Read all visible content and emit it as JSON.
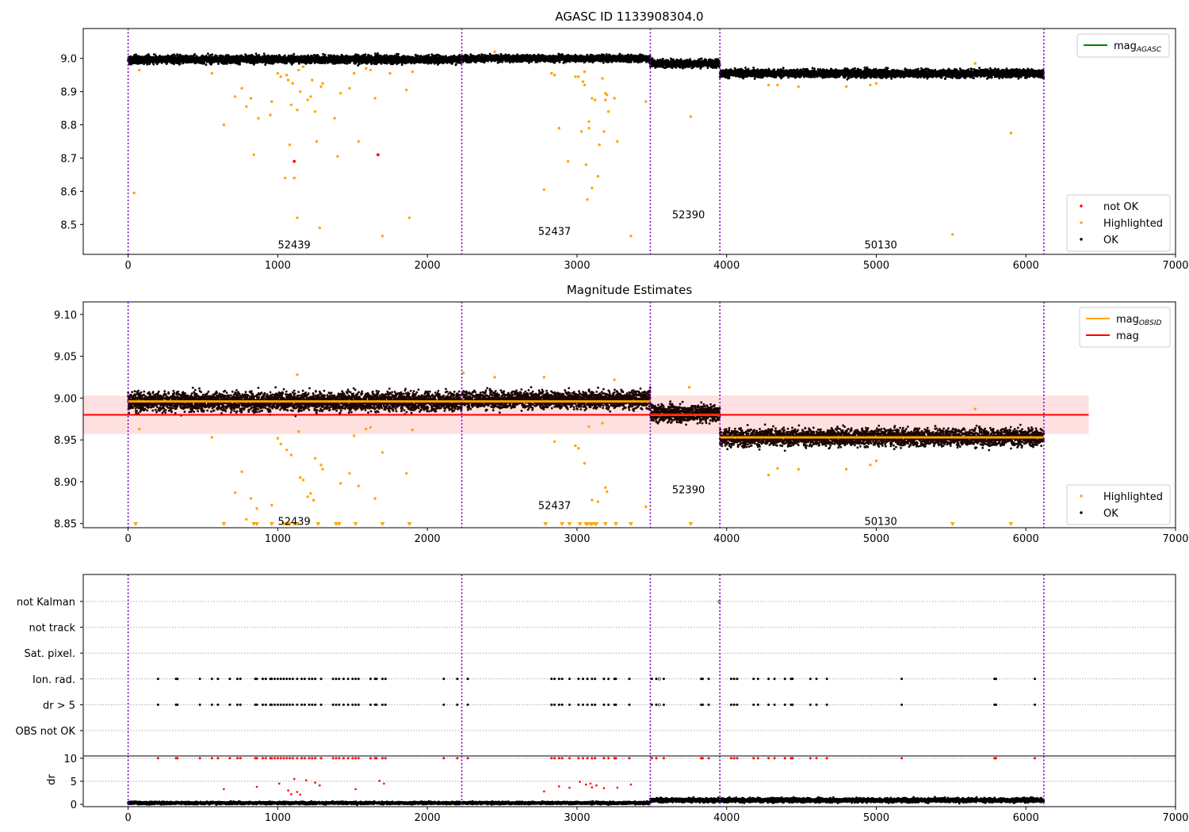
{
  "chart_data": [
    {
      "type": "scatter",
      "title": "AGASC ID 1133908304.0",
      "xlim": [
        -300,
        7000
      ],
      "ylim": [
        8.41,
        9.09
      ],
      "xticks": [
        0,
        1000,
        2000,
        3000,
        4000,
        5000,
        6000,
        7000
      ],
      "yticks": [
        8.5,
        8.6,
        8.7,
        8.8,
        8.9,
        9.0
      ],
      "obs_boundaries": [
        0,
        2230,
        3490,
        3955,
        6120
      ],
      "obs_labels": [
        {
          "text": "52439",
          "x": 1110,
          "y": 8.44
        },
        {
          "text": "52437",
          "x": 2850,
          "y": 8.48
        },
        {
          "text": "52390",
          "x": 3745,
          "y": 8.53
        },
        {
          "text": "50130",
          "x": 5030,
          "y": 8.44
        }
      ],
      "legend_top": {
        "position": "top-right",
        "entries": [
          {
            "label": "mag",
            "sub": "AGASC",
            "color": "#008000"
          }
        ]
      },
      "legend_bottom": {
        "position": "bottom-right",
        "entries": [
          {
            "label": "not OK",
            "color": "#ff0000"
          },
          {
            "label": "Highlighted",
            "color": "#ffa500"
          },
          {
            "label": "OK",
            "color": "#000000"
          }
        ]
      },
      "ok_segments": [
        {
          "x0": 0,
          "x1": 2230,
          "mean": 8.997,
          "spread": 0.012
        },
        {
          "x0": 2230,
          "x1": 3490,
          "mean": 9.0,
          "spread": 0.01
        },
        {
          "x0": 3490,
          "x1": 3955,
          "mean": 8.985,
          "spread": 0.012
        },
        {
          "x0": 3955,
          "x1": 6120,
          "mean": 8.955,
          "spread": 0.012
        }
      ],
      "highlighted": [
        [
          40,
          8.595
        ],
        [
          75,
          8.965
        ],
        [
          560,
          8.955
        ],
        [
          640,
          8.8
        ],
        [
          715,
          8.885
        ],
        [
          760,
          8.91
        ],
        [
          790,
          8.855
        ],
        [
          820,
          8.88
        ],
        [
          840,
          8.71
        ],
        [
          870,
          8.82
        ],
        [
          960,
          8.87
        ],
        [
          950,
          8.83
        ],
        [
          1000,
          8.955
        ],
        [
          1020,
          8.945
        ],
        [
          1050,
          8.64
        ],
        [
          1060,
          8.95
        ],
        [
          1070,
          8.935
        ],
        [
          1080,
          8.74
        ],
        [
          1090,
          8.86
        ],
        [
          1110,
          8.64
        ],
        [
          1130,
          8.845
        ],
        [
          1140,
          8.965
        ],
        [
          1150,
          8.9
        ],
        [
          1170,
          8.975
        ],
        [
          1200,
          8.875
        ],
        [
          1220,
          8.885
        ],
        [
          1230,
          8.935
        ],
        [
          1250,
          8.84
        ],
        [
          1260,
          8.75
        ],
        [
          1290,
          8.915
        ],
        [
          1300,
          8.925
        ],
        [
          1380,
          8.82
        ],
        [
          1400,
          8.705
        ],
        [
          1420,
          8.895
        ],
        [
          1480,
          8.91
        ],
        [
          1510,
          8.955
        ],
        [
          1540,
          8.75
        ],
        [
          1590,
          8.97
        ],
        [
          1620,
          8.965
        ],
        [
          1650,
          8.88
        ],
        [
          1700,
          8.465
        ],
        [
          1750,
          8.955
        ],
        [
          1860,
          8.905
        ],
        [
          1880,
          8.52
        ],
        [
          1900,
          8.96
        ],
        [
          1130,
          8.52
        ],
        [
          1280,
          8.49
        ],
        [
          1100,
          8.925
        ],
        [
          2450,
          9.02
        ],
        [
          2780,
          8.605
        ],
        [
          2830,
          8.955
        ],
        [
          2850,
          8.95
        ],
        [
          2880,
          8.79
        ],
        [
          2940,
          8.69
        ],
        [
          2990,
          8.945
        ],
        [
          3010,
          8.945
        ],
        [
          3030,
          8.78
        ],
        [
          3040,
          8.93
        ],
        [
          3050,
          8.92
        ],
        [
          3060,
          8.68
        ],
        [
          3080,
          8.81
        ],
        [
          3080,
          8.79
        ],
        [
          3100,
          8.88
        ],
        [
          3120,
          8.875
        ],
        [
          3140,
          8.645
        ],
        [
          3150,
          8.74
        ],
        [
          3170,
          8.94
        ],
        [
          3180,
          8.78
        ],
        [
          3190,
          8.895
        ],
        [
          3190,
          8.875
        ],
        [
          3200,
          8.89
        ],
        [
          3210,
          8.84
        ],
        [
          3250,
          8.88
        ],
        [
          3270,
          8.75
        ],
        [
          3360,
          8.465
        ],
        [
          3460,
          8.87
        ],
        [
          3760,
          8.825
        ],
        [
          4280,
          8.92
        ],
        [
          4340,
          8.92
        ],
        [
          4480,
          8.915
        ],
        [
          4800,
          8.915
        ],
        [
          4960,
          8.92
        ],
        [
          5000,
          8.925
        ],
        [
          5510,
          8.47
        ],
        [
          5900,
          8.775
        ],
        [
          5660,
          8.985
        ],
        [
          3070,
          8.575
        ],
        [
          3100,
          8.61
        ],
        [
          3050,
          8.96
        ]
      ],
      "not_ok": [
        [
          1110,
          8.69
        ],
        [
          1670,
          8.71
        ]
      ]
    },
    {
      "type": "scatter",
      "title": "Magnitude Estimates",
      "xlim": [
        -300,
        7000
      ],
      "ylim": [
        8.845,
        9.115
      ],
      "xticks": [
        0,
        1000,
        2000,
        3000,
        4000,
        5000,
        6000,
        7000
      ],
      "yticks": [
        8.85,
        8.9,
        8.95,
        9.0,
        9.05,
        9.1
      ],
      "obs_boundaries": [
        0,
        2230,
        3490,
        3955,
        6120
      ],
      "obs_labels": [
        {
          "text": "52439",
          "x": 1110,
          "y": 8.853
        },
        {
          "text": "52437",
          "x": 2850,
          "y": 8.872
        },
        {
          "text": "52390",
          "x": 3745,
          "y": 8.891
        },
        {
          "text": "50130",
          "x": 5030,
          "y": 8.853
        }
      ],
      "mag_line": {
        "value": 8.98,
        "band": [
          8.957,
          9.003
        ],
        "x0": -300,
        "x1": 6420
      },
      "mag_obsid": [
        {
          "x0": 0,
          "x1": 3490,
          "value": 8.996
        },
        {
          "x0": 3490,
          "x1": 3955,
          "value": 8.98
        },
        {
          "x0": 3955,
          "x1": 6120,
          "value": 8.953
        }
      ],
      "legend_top": {
        "position": "top-right",
        "entries": [
          {
            "label": "mag",
            "sub": "OBSID",
            "color": "#ffa500"
          },
          {
            "label": "mag",
            "sub": "",
            "color": "#ff0000"
          }
        ]
      },
      "legend_bottom": {
        "position": "bottom-right",
        "entries": [
          {
            "label": "Highlighted",
            "color": "#ffa500"
          },
          {
            "label": "OK",
            "color": "#000000"
          }
        ]
      },
      "ok_segments": [
        {
          "x0": 0,
          "x1": 2230,
          "mean": 8.996,
          "spread": 0.011
        },
        {
          "x0": 2230,
          "x1": 3490,
          "mean": 8.998,
          "spread": 0.01
        },
        {
          "x0": 3490,
          "x1": 3955,
          "mean": 8.982,
          "spread": 0.01
        },
        {
          "x0": 3955,
          "x1": 6120,
          "mean": 8.953,
          "spread": 0.01
        }
      ],
      "highlighted": [
        [
          75,
          8.963
        ],
        [
          560,
          8.953
        ],
        [
          715,
          8.887
        ],
        [
          760,
          8.912
        ],
        [
          790,
          8.855
        ],
        [
          820,
          8.88
        ],
        [
          860,
          8.868
        ],
        [
          960,
          8.872
        ],
        [
          1000,
          8.952
        ],
        [
          1020,
          8.945
        ],
        [
          1060,
          8.938
        ],
        [
          1090,
          8.932
        ],
        [
          1140,
          8.96
        ],
        [
          1150,
          8.905
        ],
        [
          1170,
          8.902
        ],
        [
          1200,
          8.882
        ],
        [
          1220,
          8.886
        ],
        [
          1240,
          8.878
        ],
        [
          1250,
          8.928
        ],
        [
          1290,
          8.92
        ],
        [
          1300,
          8.915
        ],
        [
          1420,
          8.898
        ],
        [
          1480,
          8.91
        ],
        [
          1510,
          8.955
        ],
        [
          1540,
          8.895
        ],
        [
          1590,
          8.963
        ],
        [
          1620,
          8.965
        ],
        [
          1650,
          8.88
        ],
        [
          1700,
          8.935
        ],
        [
          1860,
          8.91
        ],
        [
          1900,
          8.962
        ],
        [
          2850,
          8.948
        ],
        [
          2990,
          8.943
        ],
        [
          3010,
          8.94
        ],
        [
          3050,
          8.922
        ],
        [
          3080,
          8.966
        ],
        [
          3100,
          8.878
        ],
        [
          3140,
          8.876
        ],
        [
          3170,
          8.97
        ],
        [
          3190,
          8.893
        ],
        [
          3200,
          8.888
        ],
        [
          3460,
          8.87
        ],
        [
          4280,
          8.908
        ],
        [
          4340,
          8.916
        ],
        [
          4480,
          8.915
        ],
        [
          4800,
          8.915
        ],
        [
          4960,
          8.92
        ],
        [
          5000,
          8.925
        ],
        [
          5660,
          8.987
        ],
        [
          2450,
          9.025
        ],
        [
          2780,
          9.025
        ],
        [
          3250,
          9.022
        ],
        [
          3750,
          9.013
        ],
        [
          1130,
          9.028
        ],
        [
          2240,
          9.03
        ]
      ],
      "lower_limits": [
        50,
        640,
        840,
        860,
        960,
        1040,
        1060,
        1080,
        1110,
        1130,
        1270,
        1390,
        1410,
        1520,
        1700,
        1880,
        2790,
        2900,
        2950,
        3020,
        3060,
        3070,
        3090,
        3100,
        3120,
        3130,
        3190,
        3260,
        3360,
        3760,
        5510,
        5900
      ]
    },
    {
      "type": "scatter",
      "title": "",
      "xlim": [
        -300,
        7000
      ],
      "flag_rows": [
        "not Kalman",
        "not track",
        "Sat. pixel.",
        "Ion. rad.",
        "dr > 5",
        "OBS not OK"
      ],
      "flag_times": [
        200,
        320,
        330,
        480,
        560,
        600,
        680,
        730,
        750,
        850,
        860,
        900,
        920,
        950,
        960,
        980,
        1000,
        1020,
        1040,
        1060,
        1080,
        1100,
        1130,
        1160,
        1180,
        1210,
        1230,
        1250,
        1290,
        1370,
        1390,
        1410,
        1440,
        1470,
        1500,
        1520,
        1540,
        1620,
        1650,
        1660,
        1700,
        1720,
        2110,
        2200,
        2270,
        2830,
        2850,
        2880,
        2900,
        2950,
        3010,
        3040,
        3070,
        3100,
        3120,
        3180,
        3210,
        3250,
        3260,
        3350,
        3500,
        3530,
        3580,
        3830,
        3840,
        3880,
        4030,
        4050,
        4070,
        4180,
        4210,
        4280,
        4320,
        4390,
        4430,
        4440,
        4560,
        4600,
        4670,
        5170,
        5790,
        5800,
        6060
      ],
      "extra_flags": {
        "not Kalman": [
          3950
        ],
        "Ion. rad.": [
          3550
        ],
        "dr > 5": [
          3550
        ]
      }
    },
    {
      "type": "scatter",
      "title": "",
      "ylabel": "dr",
      "xlim": [
        -300,
        7000
      ],
      "ylim": [
        -0.5,
        10.5
      ],
      "xticks": [
        0,
        1000,
        2000,
        3000,
        4000,
        5000,
        6000,
        7000
      ],
      "yticks": [
        0,
        5,
        10
      ],
      "ok_segments": [
        {
          "x0": 0,
          "x1": 3490,
          "mean": 0.3,
          "spread": 0.25
        },
        {
          "x0": 3490,
          "x1": 6120,
          "mean": 0.9,
          "spread": 0.45
        }
      ],
      "red_points": [
        [
          640,
          3.3
        ],
        [
          860,
          3.8
        ],
        [
          1010,
          4.5
        ],
        [
          1070,
          3.0
        ],
        [
          1090,
          2.2
        ],
        [
          1110,
          5.5
        ],
        [
          1130,
          2.7
        ],
        [
          1150,
          2.1
        ],
        [
          1190,
          5.2
        ],
        [
          1250,
          4.7
        ],
        [
          1280,
          4.1
        ],
        [
          1520,
          3.3
        ],
        [
          1680,
          5.1
        ],
        [
          1710,
          4.5
        ],
        [
          2780,
          2.8
        ],
        [
          2880,
          3.9
        ],
        [
          2950,
          3.6
        ],
        [
          3020,
          4.9
        ],
        [
          3060,
          4.3
        ],
        [
          3090,
          4.5
        ],
        [
          3100,
          3.7
        ],
        [
          3130,
          4.1
        ],
        [
          3180,
          3.5
        ],
        [
          3270,
          3.6
        ],
        [
          3360,
          4.3
        ]
      ],
      "red_clip_value": 10
    }
  ]
}
